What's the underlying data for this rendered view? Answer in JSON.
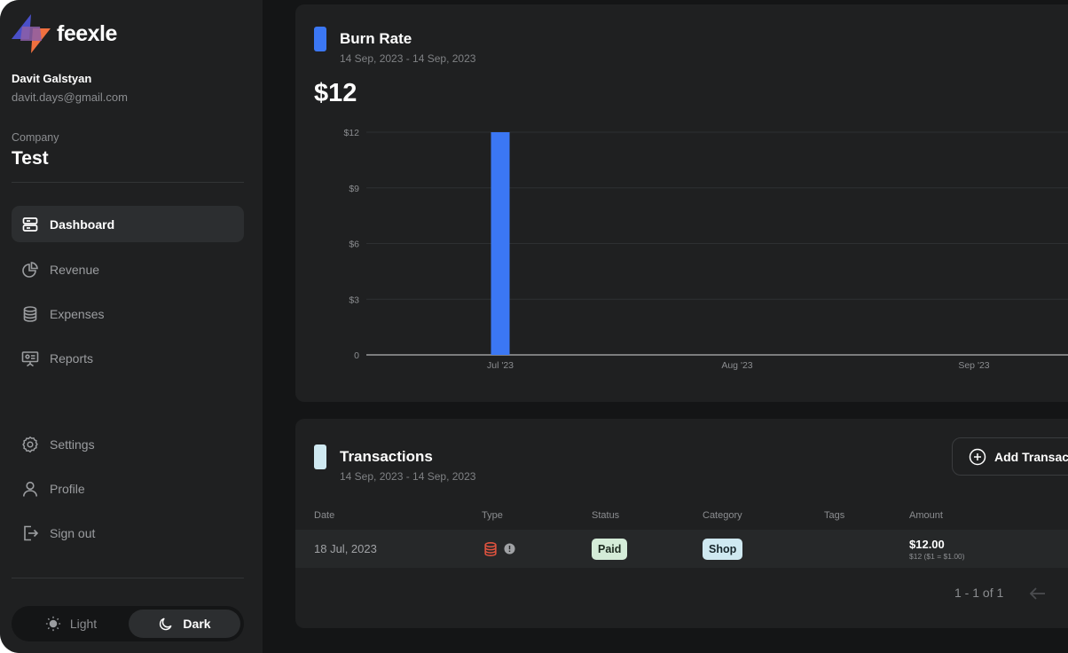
{
  "brand": {
    "name": "feexle"
  },
  "user": {
    "name": "Davit Galstyan",
    "email": "davit.days@gmail.com"
  },
  "company": {
    "label": "Company",
    "name": "Test"
  },
  "nav": {
    "main": [
      {
        "label": "Dashboard",
        "icon": "server-icon",
        "active": true
      },
      {
        "label": "Revenue",
        "icon": "pie-chart-icon",
        "active": false
      },
      {
        "label": "Expenses",
        "icon": "database-icon",
        "active": false
      },
      {
        "label": "Reports",
        "icon": "presentation-icon",
        "active": false
      }
    ],
    "secondary": [
      {
        "label": "Settings",
        "icon": "gear-icon"
      },
      {
        "label": "Profile",
        "icon": "user-icon"
      },
      {
        "label": "Sign out",
        "icon": "sign-out-icon"
      }
    ]
  },
  "theme": {
    "light_label": "Light",
    "dark_label": "Dark",
    "selected": "Dark"
  },
  "burn_rate": {
    "title": "Burn Rate",
    "date_range": "14 Sep, 2023 - 14 Sep, 2023",
    "total": "$12",
    "marker_color": "#3b77f4"
  },
  "chart_data": {
    "type": "bar",
    "categories": [
      "Jul '23",
      "Aug '23",
      "Sep '23"
    ],
    "values": [
      12,
      0,
      0
    ],
    "ylim": [
      0,
      12
    ],
    "yticks": [
      0,
      3,
      6,
      9,
      12
    ],
    "ytick_labels": [
      "0",
      "$3",
      "$6",
      "$9",
      "$12"
    ],
    "grid": true,
    "color": "#3b77f4",
    "title": "",
    "xlabel": "",
    "ylabel": ""
  },
  "transactions": {
    "title": "Transactions",
    "date_range": "14 Sep, 2023 - 14 Sep, 2023",
    "marker_color": "#cfe9f1",
    "add_label": "Add Transaction",
    "columns": [
      "Date",
      "Type",
      "Status",
      "Category",
      "Tags",
      "Amount"
    ],
    "rows": [
      {
        "date": "18 Jul, 2023",
        "type_icon": "database-icon",
        "status": "Paid",
        "category": "Shop",
        "tags": "",
        "amount": "$12.00",
        "amount_detail": "$12 ($1 = $1.00)"
      }
    ],
    "pagination": "1 - 1 of 1"
  }
}
